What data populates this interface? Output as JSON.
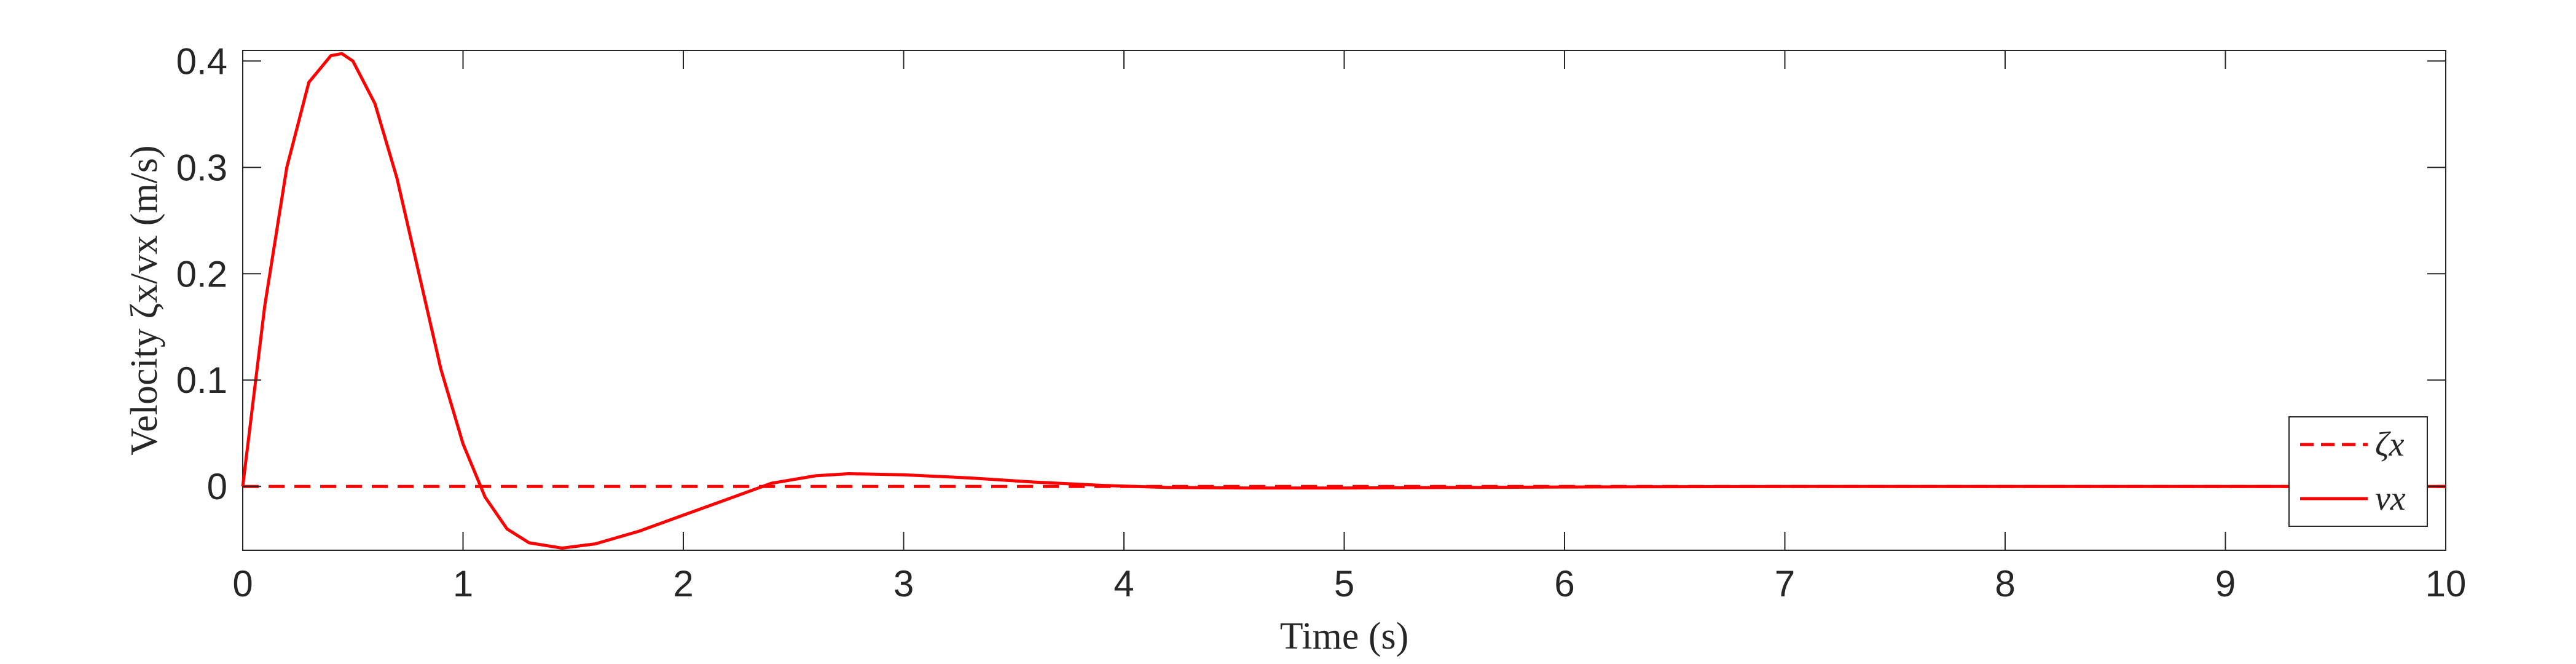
{
  "chart_data": {
    "type": "line",
    "xlabel": "Time (s)",
    "ylabel": "Velocity ζx/vx (m/s)",
    "xlim": [
      0,
      10
    ],
    "ylim": [
      -0.06,
      0.41
    ],
    "xticks": [
      0,
      1,
      2,
      3,
      4,
      5,
      6,
      7,
      8,
      9,
      10
    ],
    "xtick_labels": [
      "0",
      "1",
      "2",
      "3",
      "4",
      "5",
      "6",
      "7",
      "8",
      "9",
      "10"
    ],
    "yticks": [
      0,
      0.1,
      0.2,
      0.3,
      0.4
    ],
    "ytick_labels": [
      "0",
      "0.1",
      "0.2",
      "0.3",
      "0.4"
    ],
    "grid": false,
    "legend_position": "bottom-right",
    "series": [
      {
        "name": "ζx",
        "style": "dashed",
        "color": "#ff0000",
        "x": [
          0,
          10
        ],
        "y": [
          0,
          0
        ]
      },
      {
        "name": "vx",
        "style": "solid",
        "color": "#ff0000",
        "x": [
          0,
          0.1,
          0.2,
          0.3,
          0.4,
          0.45,
          0.5,
          0.6,
          0.7,
          0.8,
          0.9,
          1.0,
          1.1,
          1.2,
          1.3,
          1.45,
          1.6,
          1.8,
          2.0,
          2.2,
          2.4,
          2.6,
          2.75,
          3.0,
          3.3,
          3.6,
          3.9,
          4.2,
          4.6,
          5.0,
          5.5,
          6.0,
          7.0,
          8.0,
          9.0,
          10.0
        ],
        "y": [
          0,
          0.17,
          0.3,
          0.38,
          0.405,
          0.407,
          0.4,
          0.36,
          0.29,
          0.2,
          0.11,
          0.04,
          -0.01,
          -0.04,
          -0.053,
          -0.058,
          -0.054,
          -0.042,
          -0.027,
          -0.012,
          0.003,
          0.01,
          0.012,
          0.011,
          0.008,
          0.004,
          0.001,
          -0.001,
          -0.0015,
          -0.0015,
          -0.001,
          -0.0005,
          0,
          0,
          0,
          0
        ]
      }
    ]
  }
}
